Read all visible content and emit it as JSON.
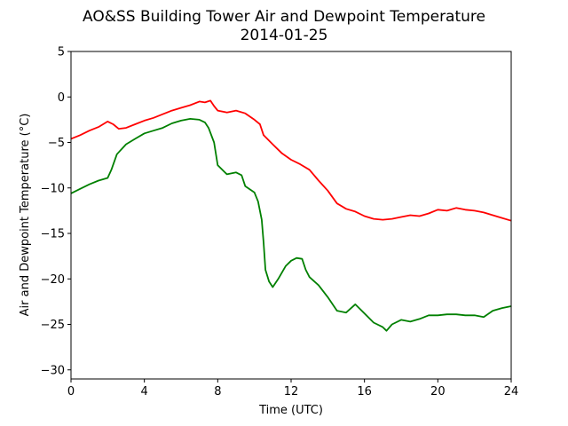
{
  "chart_data": {
    "type": "line",
    "title": "AO&SS Building Tower Air and Dewpoint Temperature",
    "subtitle": "2014-01-25",
    "xlabel": "Time (UTC)",
    "ylabel": "Air and Dewpoint Temperature (°C)",
    "xlim": [
      0,
      24
    ],
    "ylim": [
      -31,
      5
    ],
    "xticks": [
      0,
      4,
      8,
      12,
      16,
      20,
      24
    ],
    "yticks": [
      5,
      0,
      -5,
      -10,
      -15,
      -20,
      -25,
      -30
    ],
    "grid": false,
    "legend": "none",
    "series": [
      {
        "color": "#ff0000",
        "x": [
          0,
          0.5,
          1,
          1.5,
          2,
          2.3,
          2.6,
          3,
          3.5,
          4,
          4.5,
          5,
          5.5,
          6,
          6.5,
          7,
          7.3,
          7.6,
          7.8,
          8,
          8.5,
          9,
          9.5,
          10,
          10.3,
          10.5,
          11,
          11.5,
          12,
          12.5,
          13,
          13.5,
          14,
          14.5,
          15,
          15.5,
          16,
          16.5,
          17,
          17.5,
          18,
          18.5,
          19,
          19.5,
          20,
          20.5,
          21,
          21.5,
          22,
          22.5,
          23,
          23.5,
          24
        ],
        "y": [
          -4.6,
          -4.2,
          -3.7,
          -3.3,
          -2.7,
          -3.0,
          -3.5,
          -3.4,
          -3.0,
          -2.6,
          -2.3,
          -1.9,
          -1.5,
          -1.2,
          -0.9,
          -0.5,
          -0.6,
          -0.4,
          -1.0,
          -1.5,
          -1.7,
          -1.5,
          -1.8,
          -2.5,
          -3.0,
          -4.2,
          -5.2,
          -6.2,
          -6.9,
          -7.4,
          -8.0,
          -9.2,
          -10.3,
          -11.7,
          -12.3,
          -12.6,
          -13.1,
          -13.4,
          -13.5,
          -13.4,
          -13.2,
          -13.0,
          -13.1,
          -12.8,
          -12.4,
          -12.5,
          -12.2,
          -12.4,
          -12.5,
          -12.7,
          -13.0,
          -13.3,
          -13.6
        ]
      },
      {
        "color": "#008000",
        "x": [
          0,
          0.5,
          1,
          1.5,
          2,
          2.2,
          2.5,
          3,
          3.5,
          4,
          4.5,
          5,
          5.5,
          6,
          6.5,
          7,
          7.3,
          7.5,
          7.8,
          8,
          8.5,
          9,
          9.3,
          9.5,
          10,
          10.2,
          10.4,
          10.5,
          10.6,
          10.8,
          11,
          11.3,
          11.7,
          12,
          12.3,
          12.6,
          12.8,
          13,
          13.5,
          14,
          14.5,
          15,
          15.5,
          16,
          16.5,
          17,
          17.2,
          17.5,
          18,
          18.5,
          19,
          19.5,
          20,
          20.5,
          21,
          21.5,
          22,
          22.5,
          23,
          23.5,
          24
        ],
        "y": [
          -10.6,
          -10.1,
          -9.6,
          -9.2,
          -8.9,
          -8.0,
          -6.3,
          -5.2,
          -4.6,
          -4.0,
          -3.7,
          -3.4,
          -2.9,
          -2.6,
          -2.4,
          -2.5,
          -2.8,
          -3.4,
          -5.0,
          -7.5,
          -8.5,
          -8.3,
          -8.6,
          -9.8,
          -10.5,
          -11.5,
          -13.5,
          -16.0,
          -19.0,
          -20.3,
          -20.9,
          -20.0,
          -18.6,
          -18.0,
          -17.7,
          -17.8,
          -19.0,
          -19.8,
          -20.7,
          -22.0,
          -23.5,
          -23.7,
          -22.8,
          -23.8,
          -24.8,
          -25.3,
          -25.7,
          -25.0,
          -24.5,
          -24.7,
          -24.4,
          -24.0,
          -24.0,
          -23.9,
          -23.9,
          -24.0,
          -24.0,
          -24.2,
          -23.5,
          -23.2,
          -23.0
        ]
      }
    ]
  }
}
